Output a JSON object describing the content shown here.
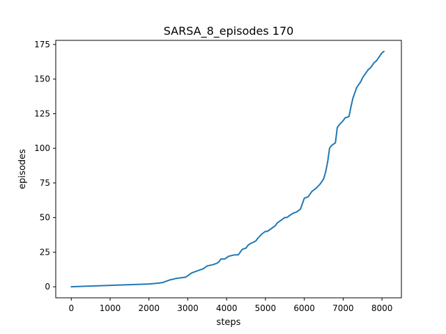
{
  "chart_data": {
    "type": "line",
    "title": "SARSA_8_episodes 170",
    "xlabel": "steps",
    "ylabel": "episodes",
    "xlim": [
      -400,
      8500
    ],
    "ylim": [
      -8,
      178
    ],
    "xticks": [
      0,
      1000,
      2000,
      3000,
      4000,
      5000,
      6000,
      7000,
      8000
    ],
    "yticks": [
      0,
      25,
      50,
      75,
      100,
      125,
      150,
      175
    ],
    "grid": false,
    "series_color": "#1f77b4",
    "series": [
      {
        "x": [
          0,
          500,
          1000,
          1500,
          2000,
          2200,
          2350,
          2450,
          2550,
          2700,
          2950,
          3000,
          3100,
          3200,
          3300,
          3400,
          3450,
          3500,
          3650,
          3750,
          3800,
          3850,
          3950,
          4000,
          4050,
          4200,
          4300,
          4350,
          4400,
          4500,
          4550,
          4600,
          4750,
          4800,
          4900,
          5000,
          5050,
          5150,
          5250,
          5300,
          5400,
          5500,
          5550,
          5600,
          5700,
          5800,
          5900,
          5950,
          6000,
          6100,
          6150,
          6200,
          6300,
          6400,
          6450,
          6500,
          6550,
          6600,
          6650,
          6700,
          6800,
          6850,
          6900,
          7000,
          7050,
          7150,
          7200,
          7250,
          7300,
          7350,
          7400,
          7450,
          7500,
          7550,
          7600,
          7650,
          7700,
          7750,
          7800,
          7850,
          7900,
          7950,
          8000,
          8050
        ],
        "y": [
          0,
          0.5,
          1,
          1.5,
          2,
          2.5,
          3,
          4,
          5,
          6,
          7,
          8,
          10,
          11,
          12,
          13,
          14,
          15,
          16,
          17,
          18,
          20,
          20,
          21,
          22,
          23,
          23,
          25,
          27,
          28,
          30,
          31,
          33,
          35,
          38,
          40,
          40,
          42,
          44,
          46,
          48,
          50,
          50,
          51,
          53,
          54,
          56,
          60,
          64,
          65,
          67,
          69,
          71,
          74,
          76,
          78,
          83,
          90,
          100,
          102,
          104,
          115,
          117,
          120,
          122,
          123,
          130,
          136,
          140,
          144,
          146,
          148,
          151,
          153,
          155,
          157,
          158,
          160,
          162,
          163,
          165,
          167,
          169,
          170
        ]
      }
    ]
  }
}
